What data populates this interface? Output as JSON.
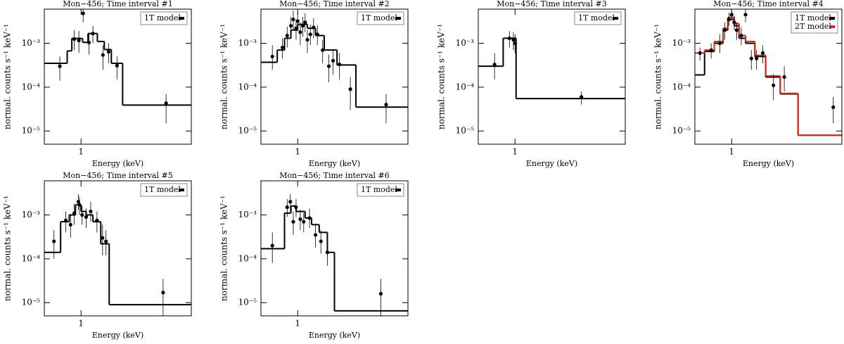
{
  "chart_data": [
    {
      "type": "scatter",
      "title": "Mon−456; Time interval #1",
      "xlabel": "Energy (keV)",
      "ylabel": "normal. counts s⁻¹ keV⁻¹",
      "xscale": "log",
      "yscale": "log",
      "xlim": [
        0.5,
        8
      ],
      "ylim": [
        5e-06,
        0.006
      ],
      "xticks": [
        1
      ],
      "yticks": [
        {
          "value": 1e-05,
          "label": "10⁻⁵"
        },
        {
          "value": 0.0001,
          "label": "10⁻⁴"
        },
        {
          "value": 0.001,
          "label": "10⁻³"
        }
      ],
      "legend": "upper right",
      "points": {
        "color": "#000000",
        "x": [
          0.67,
          0.88,
          0.96,
          1.04,
          1.16,
          1.25,
          1.51,
          1.68,
          1.97,
          4.97
        ],
        "y": [
          0.0003,
          0.00125,
          0.00116,
          0.0048,
          0.00104,
          0.00167,
          0.00054,
          0.00064,
          0.00031,
          4.3e-05
        ],
        "err_lo": [
          0.00014,
          0.0007,
          0.0006,
          0.003,
          0.00055,
          0.001,
          0.00025,
          0.00035,
          0.00015,
          1.5e-05
        ],
        "err_hi": [
          0.0005,
          0.002,
          0.0019,
          0.007,
          0.0017,
          0.0025,
          0.0009,
          0.001,
          0.0005,
          7e-05
        ]
      },
      "models": [
        {
          "name": "1T model",
          "color": "#000000",
          "edges": [
            0.5,
            0.77,
            0.84,
            1.03,
            1.14,
            1.36,
            1.55,
            1.77,
            2.19,
            8
          ],
          "values": [
            0.00035,
            0.00067,
            0.00129,
            0.00105,
            0.00167,
            0.0011,
            0.00072,
            0.00035,
            3.9e-05
          ]
        }
      ]
    },
    {
      "type": "scatter",
      "title": "Mon−456; Time interval #2",
      "xlabel": "Energy (keV)",
      "ylabel": "normal. counts s⁻¹ keV⁻¹",
      "xscale": "log",
      "yscale": "log",
      "xlim": [
        0.5,
        8
      ],
      "ylim": [
        5e-06,
        0.006
      ],
      "xticks": [
        1
      ],
      "yticks": [
        {
          "value": 1e-05,
          "label": "10⁻⁵"
        },
        {
          "value": 0.0001,
          "label": "10⁻⁴"
        },
        {
          "value": 0.001,
          "label": "10⁻³"
        }
      ],
      "legend": "upper right",
      "points": {
        "color": "#000000",
        "x": [
          0.62,
          0.75,
          0.82,
          0.88,
          0.92,
          0.97,
          1.0,
          1.05,
          1.1,
          1.15,
          1.2,
          1.27,
          1.35,
          1.45,
          1.6,
          1.8,
          1.95,
          2.2,
          2.7,
          5.3
        ],
        "y": [
          0.0005,
          0.0008,
          0.0015,
          0.0025,
          0.0035,
          0.0022,
          0.0032,
          0.0018,
          0.0025,
          0.003,
          0.0012,
          0.0016,
          0.0023,
          0.0016,
          0.0007,
          0.0003,
          0.0004,
          0.00033,
          9e-05,
          4e-05
        ],
        "err_lo": [
          0.00025,
          0.00045,
          0.0008,
          0.0014,
          0.002,
          0.0012,
          0.0019,
          0.0009,
          0.0014,
          0.0018,
          0.0006,
          0.0009,
          0.0013,
          0.0009,
          0.00035,
          0.00013,
          0.00019,
          0.00015,
          3e-05,
          1.5e-05
        ],
        "err_hi": [
          0.0009,
          0.0013,
          0.0024,
          0.004,
          0.0055,
          0.0035,
          0.005,
          0.003,
          0.004,
          0.0048,
          0.002,
          0.0027,
          0.0037,
          0.0026,
          0.0012,
          0.00055,
          0.0007,
          0.0006,
          0.00017,
          7e-05
        ]
      },
      "models": [
        {
          "name": "1T model",
          "color": "#000000",
          "edges": [
            0.5,
            0.68,
            0.78,
            0.88,
            1.0,
            1.2,
            1.4,
            1.65,
            2.1,
            3.0,
            8
          ],
          "values": [
            0.00037,
            0.0007,
            0.0013,
            0.002,
            0.0027,
            0.0022,
            0.0015,
            0.0007,
            0.00032,
            3.5e-05
          ]
        }
      ]
    },
    {
      "type": "scatter",
      "title": "Mon−456; Time interval #3",
      "xlabel": "Energy (keV)",
      "ylabel": "normal. counts s⁻¹ keV⁻¹",
      "xscale": "log",
      "yscale": "log",
      "xlim": [
        0.5,
        8
      ],
      "ylim": [
        5e-06,
        0.006
      ],
      "xticks": [
        1
      ],
      "yticks": [
        {
          "value": 1e-05,
          "label": "10⁻⁵"
        },
        {
          "value": 0.0001,
          "label": "10⁻⁴"
        },
        {
          "value": 0.001,
          "label": "10⁻³"
        }
      ],
      "legend": "upper right",
      "points": {
        "color": "#000000",
        "x": [
          0.68,
          0.9,
          0.97,
          1.0,
          3.5
        ],
        "y": [
          0.00033,
          0.0013,
          0.0012,
          0.001,
          6e-05
        ],
        "err_lo": [
          0.00015,
          0.0008,
          0.0007,
          0.0006,
          4e-05
        ],
        "err_hi": [
          0.0006,
          0.0019,
          0.0018,
          0.0016,
          8e-05
        ]
      },
      "models": [
        {
          "name": "1T model",
          "color": "#000000",
          "edges": [
            0.5,
            0.8,
            1.02,
            8
          ],
          "values": [
            0.0003,
            0.0013,
            5.5e-05
          ]
        }
      ]
    },
    {
      "type": "scatter",
      "title": "Mon−456; Time interval #4",
      "xlabel": "Energy (keV)",
      "ylabel": "normal. counts s⁻¹ keV⁻¹",
      "xscale": "log",
      "yscale": "log",
      "xlim": [
        0.5,
        8
      ],
      "ylim": [
        5e-06,
        0.006
      ],
      "xticks": [
        1
      ],
      "yticks": [
        {
          "value": 1e-05,
          "label": "10⁻⁵"
        },
        {
          "value": 0.0001,
          "label": "10⁻⁴"
        },
        {
          "value": 0.001,
          "label": "10⁻³"
        }
      ],
      "legend": "upper right",
      "points": {
        "color": "#000000",
        "x": [
          0.55,
          0.68,
          0.8,
          0.88,
          0.95,
          1.0,
          1.05,
          1.1,
          1.2,
          1.3,
          1.45,
          1.6,
          1.8,
          2.2,
          2.7,
          6.8
        ],
        "y": [
          0.0006,
          0.0007,
          0.001,
          0.002,
          0.0035,
          0.0045,
          0.003,
          0.002,
          0.0015,
          0.0045,
          0.00045,
          0.00045,
          0.0006,
          0.00011,
          0.00017,
          3.5e-05
        ],
        "err_lo": [
          0.0004,
          0.00045,
          0.0006,
          0.0012,
          0.0025,
          0.0033,
          0.002,
          0.0012,
          0.0009,
          0.003,
          0.00025,
          0.00025,
          0.00035,
          5e-05,
          8e-05,
          1.5e-05
        ],
        "err_hi": [
          0.0008,
          0.001,
          0.0016,
          0.003,
          0.005,
          0.006,
          0.0042,
          0.003,
          0.0023,
          0.006,
          0.0007,
          0.0007,
          0.0009,
          0.0002,
          0.0003,
          6e-05
        ]
      },
      "models": [
        {
          "name": "1T model",
          "color": "#000000",
          "edges": [
            0.5,
            0.6,
            0.72,
            0.85,
            0.93,
            1.05,
            1.15,
            1.3,
            1.55,
            1.9,
            2.5,
            3.5,
            8
          ],
          "values": [
            0.00019,
            0.00065,
            0.001,
            0.002,
            0.0035,
            0.0025,
            0.0013,
            0.001,
            0.0005,
            0.00017,
            7e-05,
            8e-06
          ]
        },
        {
          "name": "2T model",
          "color": "#e0201b",
          "edges": [
            0.5,
            0.6,
            0.72,
            0.85,
            0.93,
            1.05,
            1.15,
            1.3,
            1.55,
            1.9,
            2.5,
            3.5,
            8
          ],
          "values": [
            0.0006,
            0.0007,
            0.0011,
            0.0022,
            0.0039,
            0.0028,
            0.0015,
            0.0011,
            0.00053,
            0.00018,
            7.2e-05,
            8e-06
          ]
        }
      ]
    },
    {
      "type": "scatter",
      "title": "Mon−456; Time interval #5",
      "xlabel": "Energy (keV)",
      "ylabel": "normal. counts s⁻¹ keV⁻¹",
      "xscale": "log",
      "yscale": "log",
      "xlim": [
        0.5,
        8
      ],
      "ylim": [
        5e-06,
        0.006
      ],
      "xticks": [
        1
      ],
      "yticks": [
        {
          "value": 1e-05,
          "label": "10⁻⁵"
        },
        {
          "value": 0.0001,
          "label": "10⁻⁴"
        },
        {
          "value": 0.001,
          "label": "10⁻³"
        }
      ],
      "legend": "upper right",
      "points": {
        "color": "#000000",
        "x": [
          0.6,
          0.75,
          0.82,
          0.88,
          0.95,
          0.97,
          1.02,
          1.1,
          1.2,
          1.35,
          1.5,
          1.6,
          4.7
        ],
        "y": [
          0.00025,
          0.00075,
          0.0006,
          0.0011,
          0.002,
          0.0017,
          0.001,
          0.0009,
          0.0012,
          0.00075,
          0.0003,
          0.00025,
          1.7e-05
        ],
        "err_lo": [
          0.0001,
          0.0004,
          0.0003,
          0.0006,
          0.0013,
          0.001,
          0.0006,
          0.0005,
          0.0007,
          0.0004,
          0.00012,
          0.00012,
          5e-06
        ],
        "err_hi": [
          0.00045,
          0.0012,
          0.001,
          0.0018,
          0.003,
          0.0026,
          0.0016,
          0.0014,
          0.002,
          0.0012,
          0.0006,
          0.00045,
          3.5e-05
        ]
      },
      "models": [
        {
          "name": "1T model",
          "color": "#000000",
          "edges": [
            0.5,
            0.68,
            0.8,
            0.9,
            1.0,
            1.1,
            1.25,
            1.45,
            1.7,
            8
          ],
          "values": [
            0.00014,
            0.0007,
            0.001,
            0.0017,
            0.0012,
            0.001,
            0.0007,
            0.00022,
            9e-06
          ]
        }
      ]
    },
    {
      "type": "scatter",
      "title": "Mon−456; Time interval #6",
      "xlabel": "Energy (keV)",
      "ylabel": "normal. counts s⁻¹ keV⁻¹",
      "xscale": "log",
      "yscale": "log",
      "xlim": [
        0.5,
        8
      ],
      "ylim": [
        5e-06,
        0.006
      ],
      "xticks": [
        1
      ],
      "yticks": [
        {
          "value": 1e-05,
          "label": "10⁻⁵"
        },
        {
          "value": 0.0001,
          "label": "10⁻⁴"
        },
        {
          "value": 0.001,
          "label": "10⁻³"
        }
      ],
      "legend": "upper right",
      "points": {
        "color": "#000000",
        "x": [
          0.62,
          0.82,
          0.87,
          0.92,
          0.97,
          1.05,
          1.12,
          1.25,
          1.4,
          1.55,
          1.75,
          4.8
        ],
        "y": [
          0.0002,
          0.0015,
          0.002,
          0.0007,
          0.0015,
          0.0008,
          0.0007,
          0.00085,
          0.00035,
          0.00025,
          0.00014,
          1.6e-05
        ],
        "err_lo": [
          8e-05,
          0.0009,
          0.0012,
          0.00035,
          0.0009,
          0.00045,
          0.0004,
          0.0005,
          0.00018,
          0.00013,
          7e-05,
          5e-06
        ],
        "err_hi": [
          0.0004,
          0.0023,
          0.003,
          0.0012,
          0.0023,
          0.0013,
          0.0011,
          0.0014,
          0.0006,
          0.00045,
          0.00025,
          3.5e-05
        ]
      },
      "models": [
        {
          "name": "1T model",
          "color": "#000000",
          "edges": [
            0.5,
            0.78,
            0.88,
            0.97,
            1.15,
            1.3,
            1.5,
            1.75,
            2.0,
            8
          ],
          "values": [
            0.00017,
            0.0011,
            0.0016,
            0.0012,
            0.00085,
            0.0006,
            0.0004,
            0.00014,
            6.5e-06
          ]
        }
      ]
    }
  ]
}
